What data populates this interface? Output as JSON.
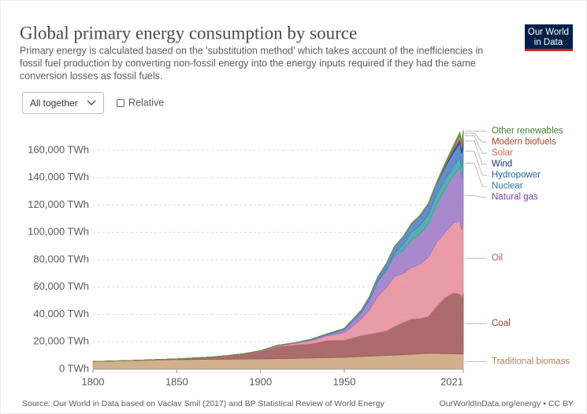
{
  "chart_data": {
    "type": "area",
    "title": "Global primary energy consumption by source",
    "subtitle": [
      "Primary energy is calculated based on the 'substitution method' which takes account of the inefficiencies in",
      "fossil fuel production by converting non-fossil energy into the energy inputs required if they had the same",
      "conversion losses as fossil fuels."
    ],
    "logo": [
      "Our World",
      "in Data"
    ],
    "controls": {
      "dropdown": "All together",
      "checkbox": "Relative"
    },
    "source": "Source: Our World in Data based on Vaclav Smil (2017) and BP Statistical Review of World Energy",
    "footer_link": "OurWorldInData.org/energy • CC BY",
    "x": [
      1800,
      1810,
      1820,
      1830,
      1840,
      1850,
      1860,
      1870,
      1880,
      1890,
      1900,
      1910,
      1920,
      1930,
      1940,
      1950,
      1960,
      1965,
      1970,
      1975,
      1980,
      1985,
      1990,
      1995,
      2000,
      2005,
      2010,
      2015,
      2019,
      2020,
      2021
    ],
    "xlim": [
      1800,
      2021
    ],
    "xticks": [
      1800,
      1850,
      1900,
      1950,
      2021
    ],
    "ylim": [
      0,
      175000
    ],
    "yticks": [
      {
        "value": 0,
        "label": "0 TWh"
      },
      {
        "value": 20000,
        "label": "20,000 TWh"
      },
      {
        "value": 40000,
        "label": "40,000 TWh"
      },
      {
        "value": 60000,
        "label": "60,000 TWh"
      },
      {
        "value": 80000,
        "label": "80,000 TWh"
      },
      {
        "value": 100000,
        "label": "100,000 TWh"
      },
      {
        "value": 120000,
        "label": "120,000 TWh"
      },
      {
        "value": 140000,
        "label": "140,000 TWh"
      },
      {
        "value": 160000,
        "label": "160,000 TWh"
      }
    ],
    "grid": true,
    "stacked": true,
    "series": [
      {
        "name": "Traditional biomass",
        "color": "#c9a27a",
        "label_color": "#b08656",
        "values": [
          5556,
          5800,
          6100,
          6400,
          6700,
          7000,
          7100,
          7200,
          7300,
          7400,
          7500,
          7700,
          7900,
          8100,
          8400,
          8700,
          9200,
          9500,
          9800,
          10000,
          10300,
          10600,
          10900,
          11200,
          11500,
          11500,
          11300,
          11200,
          11100,
          11100,
          11100
        ]
      },
      {
        "name": "Coal",
        "color": "#9c5254",
        "label_color": "#8c3a3a",
        "values": [
          97,
          128,
          153,
          264,
          356,
          569,
          1061,
          1642,
          2542,
          3757,
          5728,
          9000,
          9800,
          10500,
          12600,
          12600,
          15400,
          16100,
          17000,
          18000,
          20900,
          23600,
          25800,
          25900,
          27000,
          34400,
          41000,
          44700,
          43800,
          42000,
          44500
        ]
      },
      {
        "name": "Oil",
        "color": "#e58a98",
        "label_color": "#c4506a",
        "values": [
          0,
          0,
          0,
          0,
          0,
          0,
          0,
          6,
          44,
          88,
          181,
          511,
          1100,
          2300,
          3400,
          5400,
          12000,
          17900,
          26700,
          31600,
          36700,
          35700,
          37600,
          39600,
          43200,
          46800,
          47600,
          50800,
          53600,
          48600,
          51200
        ]
      },
      {
        "name": "Natural gas",
        "color": "#9a74c4",
        "label_color": "#7a3fa8",
        "values": [
          0,
          0,
          0,
          0,
          0,
          0,
          0,
          0,
          0,
          77,
          64,
          160,
          230,
          540,
          880,
          2100,
          4500,
          6900,
          10600,
          12400,
          15000,
          16800,
          20100,
          21900,
          24300,
          27600,
          31600,
          34700,
          39300,
          38700,
          40400
        ]
      },
      {
        "name": "Nuclear",
        "color": "#38a39a",
        "label_color": "#1f7a8c",
        "values": [
          0,
          0,
          0,
          0,
          0,
          0,
          0,
          0,
          0,
          0,
          0,
          0,
          0,
          0,
          0,
          0,
          0,
          60,
          230,
          1100,
          2100,
          4300,
          5700,
          6300,
          7000,
          7300,
          7200,
          6700,
          7000,
          6800,
          7000
        ]
      },
      {
        "name": "Hydropower",
        "color": "#4a78c8",
        "label_color": "#2a5fa8",
        "values": [
          0,
          0,
          0,
          0,
          0,
          0,
          0,
          0,
          0,
          0,
          50,
          100,
          200,
          400,
          700,
          1000,
          1900,
          2600,
          3300,
          4000,
          4800,
          5400,
          5900,
          6700,
          7200,
          7700,
          8800,
          10000,
          10500,
          10600,
          10300
        ]
      },
      {
        "name": "Wind",
        "color": "#2b3f7e",
        "label_color": "#1a2e6a",
        "values": [
          0,
          0,
          0,
          0,
          0,
          0,
          0,
          0,
          0,
          0,
          0,
          0,
          0,
          0,
          0,
          0,
          0,
          0,
          0,
          0,
          0,
          0,
          10,
          20,
          80,
          260,
          900,
          2200,
          3500,
          4000,
          4800
        ]
      },
      {
        "name": "Solar",
        "color": "#e4826a",
        "label_color": "#d65f4a",
        "values": [
          0,
          0,
          0,
          0,
          0,
          0,
          0,
          0,
          0,
          0,
          0,
          0,
          0,
          0,
          0,
          0,
          0,
          0,
          0,
          0,
          0,
          0,
          0,
          0,
          0,
          10,
          90,
          680,
          1800,
          2100,
          2700
        ]
      },
      {
        "name": "Modern biofuels",
        "color": "#b0603a",
        "label_color": "#a04628",
        "values": [
          0,
          0,
          0,
          0,
          0,
          0,
          0,
          0,
          0,
          0,
          0,
          0,
          0,
          0,
          0,
          0,
          0,
          0,
          0,
          0,
          0,
          0,
          100,
          110,
          120,
          230,
          660,
          900,
          1100,
          1000,
          1100
        ]
      },
      {
        "name": "Other renewables",
        "color": "#5a9a48",
        "label_color": "#3f7a2a",
        "values": [
          0,
          0,
          0,
          0,
          0,
          0,
          0,
          0,
          0,
          0,
          0,
          0,
          0,
          0,
          0,
          0,
          0,
          100,
          150,
          200,
          300,
          500,
          600,
          700,
          800,
          900,
          1200,
          1500,
          1800,
          1900,
          1900
        ]
      }
    ]
  }
}
